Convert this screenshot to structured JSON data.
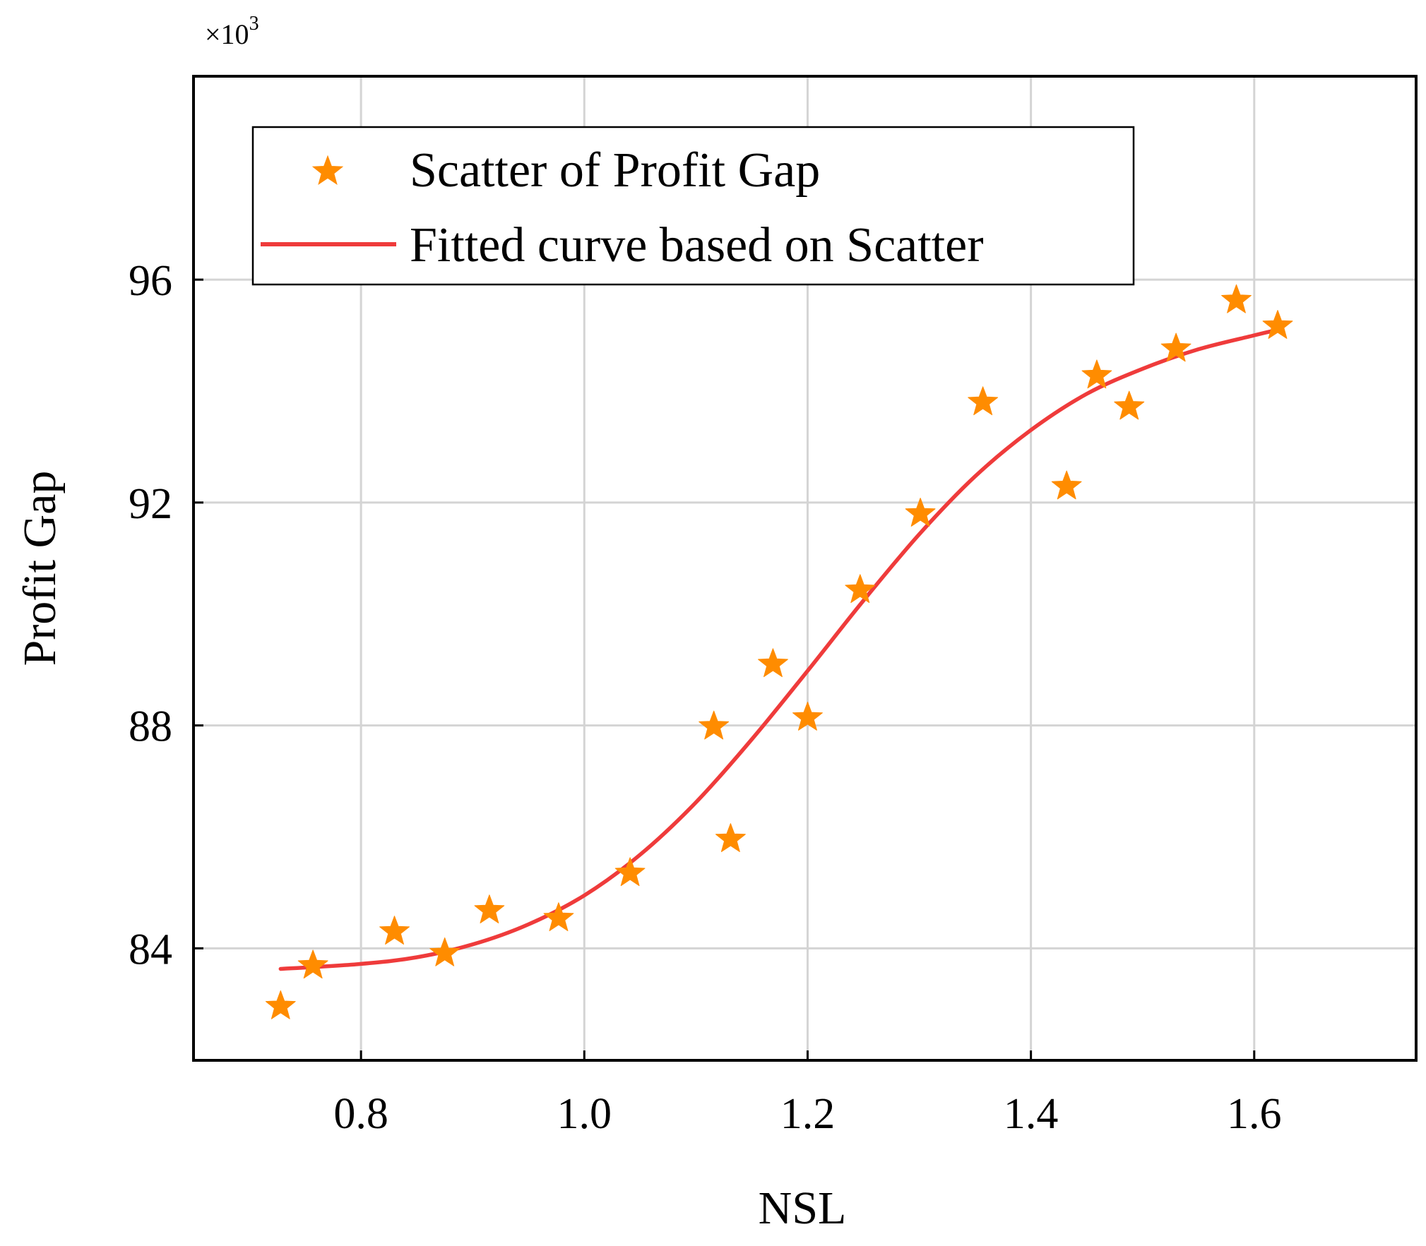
{
  "chart_data": {
    "type": "scatter",
    "title": "",
    "xlabel": "NSL",
    "ylabel": "Profit Gap",
    "y_multiplier_base": "×10",
    "y_multiplier_exp": "3",
    "xlim": [
      0.65,
      1.745
    ],
    "ylim": [
      81.99,
      99.65
    ],
    "grid": true,
    "legend_position": "top-left",
    "x_ticks": [
      0.8,
      1.0,
      1.2,
      1.4,
      1.6
    ],
    "x_tick_labels": [
      "0.8",
      "1.0",
      "1.2",
      "1.4",
      "1.6"
    ],
    "y_ticks": [
      84,
      88,
      92,
      96
    ],
    "y_tick_labels": [
      "84",
      "88",
      "92",
      "96"
    ],
    "colors": {
      "scatter": "#ff8c00",
      "curve": "#ef3b3b",
      "grid": "#d4d4d4",
      "axis": "#000000"
    },
    "series": [
      {
        "name": "Scatter of Profit Gap",
        "kind": "scatter",
        "marker": "star",
        "points": [
          {
            "x": 0.728,
            "y": 82.96
          },
          {
            "x": 0.757,
            "y": 83.69
          },
          {
            "x": 0.83,
            "y": 84.3
          },
          {
            "x": 0.875,
            "y": 83.91
          },
          {
            "x": 0.915,
            "y": 84.68
          },
          {
            "x": 0.977,
            "y": 84.54
          },
          {
            "x": 1.041,
            "y": 85.35
          },
          {
            "x": 1.116,
            "y": 87.98
          },
          {
            "x": 1.131,
            "y": 85.96
          },
          {
            "x": 1.169,
            "y": 89.1
          },
          {
            "x": 1.2,
            "y": 88.14
          },
          {
            "x": 1.247,
            "y": 90.43
          },
          {
            "x": 1.301,
            "y": 91.8
          },
          {
            "x": 1.357,
            "y": 93.8
          },
          {
            "x": 1.432,
            "y": 92.29
          },
          {
            "x": 1.459,
            "y": 94.28
          },
          {
            "x": 1.488,
            "y": 93.72
          },
          {
            "x": 1.53,
            "y": 94.76
          },
          {
            "x": 1.584,
            "y": 95.63
          },
          {
            "x": 1.621,
            "y": 95.17
          }
        ]
      },
      {
        "name": "Fitted curve based on Scatter",
        "kind": "line",
        "points": [
          {
            "x": 0.728,
            "y": 83.63
          },
          {
            "x": 0.8,
            "y": 83.72
          },
          {
            "x": 0.85,
            "y": 83.84
          },
          {
            "x": 0.9,
            "y": 84.07
          },
          {
            "x": 0.95,
            "y": 84.43
          },
          {
            "x": 1.0,
            "y": 84.95
          },
          {
            "x": 1.05,
            "y": 85.68
          },
          {
            "x": 1.1,
            "y": 86.62
          },
          {
            "x": 1.15,
            "y": 87.75
          },
          {
            "x": 1.2,
            "y": 88.98
          },
          {
            "x": 1.25,
            "y": 90.24
          },
          {
            "x": 1.3,
            "y": 91.43
          },
          {
            "x": 1.35,
            "y": 92.47
          },
          {
            "x": 1.4,
            "y": 93.3
          },
          {
            "x": 1.45,
            "y": 93.95
          },
          {
            "x": 1.5,
            "y": 94.4
          },
          {
            "x": 1.55,
            "y": 94.75
          },
          {
            "x": 1.6,
            "y": 95.0
          },
          {
            "x": 1.621,
            "y": 95.1
          }
        ]
      }
    ]
  }
}
